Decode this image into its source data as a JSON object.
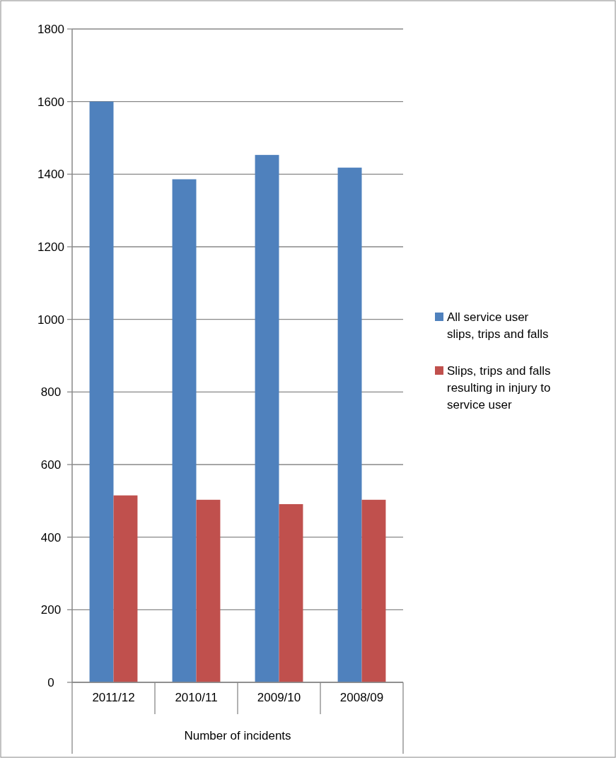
{
  "chart_data": {
    "type": "bar",
    "xlabel": "Number of incidents",
    "categories": [
      "2011/12",
      "2010/11",
      "2009/10",
      "2008/09"
    ],
    "series": [
      {
        "name": "All service user slips, trips and falls",
        "color": "#4f81bd",
        "values": [
          1600,
          1386,
          1453,
          1418
        ]
      },
      {
        "name": "Slips, trips and falls resulting in injury to service user",
        "color": "#c0504d",
        "values": [
          515,
          503,
          491,
          503
        ]
      }
    ],
    "ylim": [
      0,
      1800
    ],
    "yticks": [
      0,
      200,
      400,
      600,
      800,
      1000,
      1200,
      1400,
      1600,
      1800
    ],
    "grid": "y",
    "legend": "right"
  }
}
